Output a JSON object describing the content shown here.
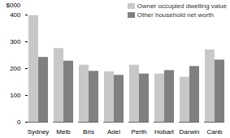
{
  "chart_data": {
    "type": "bar",
    "y_label": "$000",
    "categories": [
      "Sydney",
      "Melb",
      "Bris",
      "Adel",
      "Perth",
      "Hobart",
      "Darwin",
      "Canb"
    ],
    "series": [
      {
        "name": "Owner occupied dwelling value",
        "color": "#c8c8c8",
        "values": [
          398,
          275,
          213,
          188,
          213,
          180,
          168,
          270
        ]
      },
      {
        "name": "Other household net worth",
        "color": "#808080",
        "values": [
          242,
          228,
          190,
          175,
          180,
          193,
          208,
          232
        ]
      }
    ],
    "ylim": [
      0,
      400
    ],
    "yticks": [
      0,
      100,
      200,
      300,
      400
    ],
    "grid": false,
    "legend": "top-right"
  }
}
